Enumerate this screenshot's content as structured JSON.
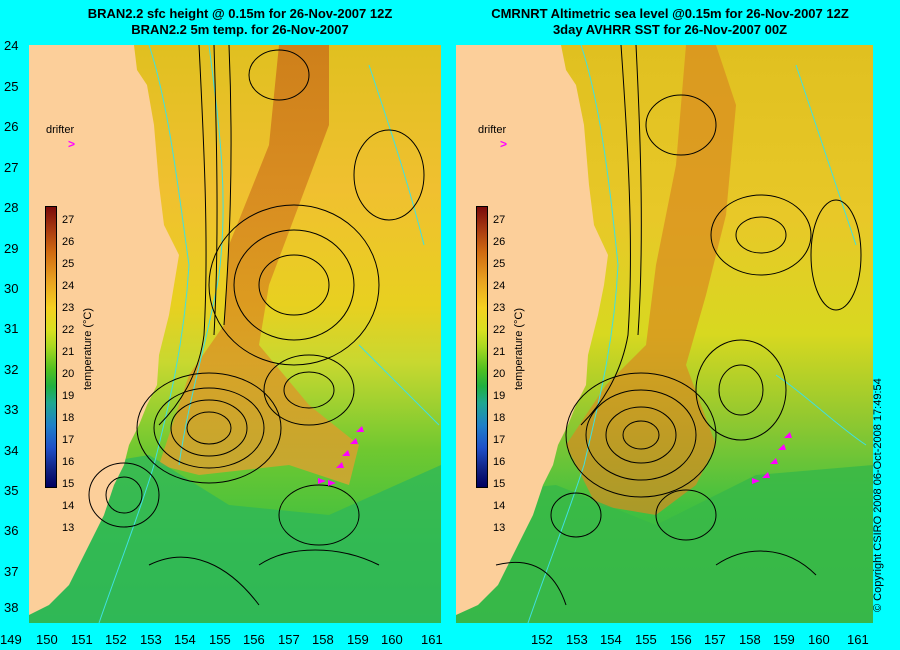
{
  "left_title": {
    "line1": "BRAN2.2 sfc height @ 0.15m for 26-Nov-2007 12Z",
    "line2": "BRAN2.2 5m temp. for 26-Nov-2007"
  },
  "right_title": {
    "line1": "CMRNRT Altimetric sea level  @0.15m  for 26-Nov-2007 12Z",
    "line2": "3day AVHRR SST for 26-Nov-2007 00Z"
  },
  "latitude_ticks": [
    "24",
    "25",
    "26",
    "27",
    "28",
    "29",
    "30",
    "31",
    "32",
    "33",
    "34",
    "35",
    "36",
    "37",
    "38"
  ],
  "longitude_ticks_left": [
    "149",
    "150",
    "151",
    "152",
    "153",
    "154",
    "155",
    "156",
    "157",
    "158",
    "159",
    "160",
    "161"
  ],
  "longitude_ticks_right": [
    "152",
    "153",
    "154",
    "155",
    "156",
    "157",
    "158",
    "159",
    "160",
    "161"
  ],
  "drifter_label": "drifter",
  "drifter_arrow": ">",
  "colorbar": {
    "title": "temperature (°C)",
    "ticks": [
      "27",
      "26",
      "25",
      "24",
      "23",
      "22",
      "21",
      "20",
      "19",
      "18",
      "17",
      "16",
      "15",
      "14",
      "13"
    ]
  },
  "copyright": "© Copyright CSIRO 2008   06-Oct-2008 17:49:54",
  "colors": {
    "land": "#fccf9a",
    "background": "#00ffff",
    "drifter": "#ff00ff",
    "contour": "#000000",
    "bathymetry": "#40e0e0"
  }
}
